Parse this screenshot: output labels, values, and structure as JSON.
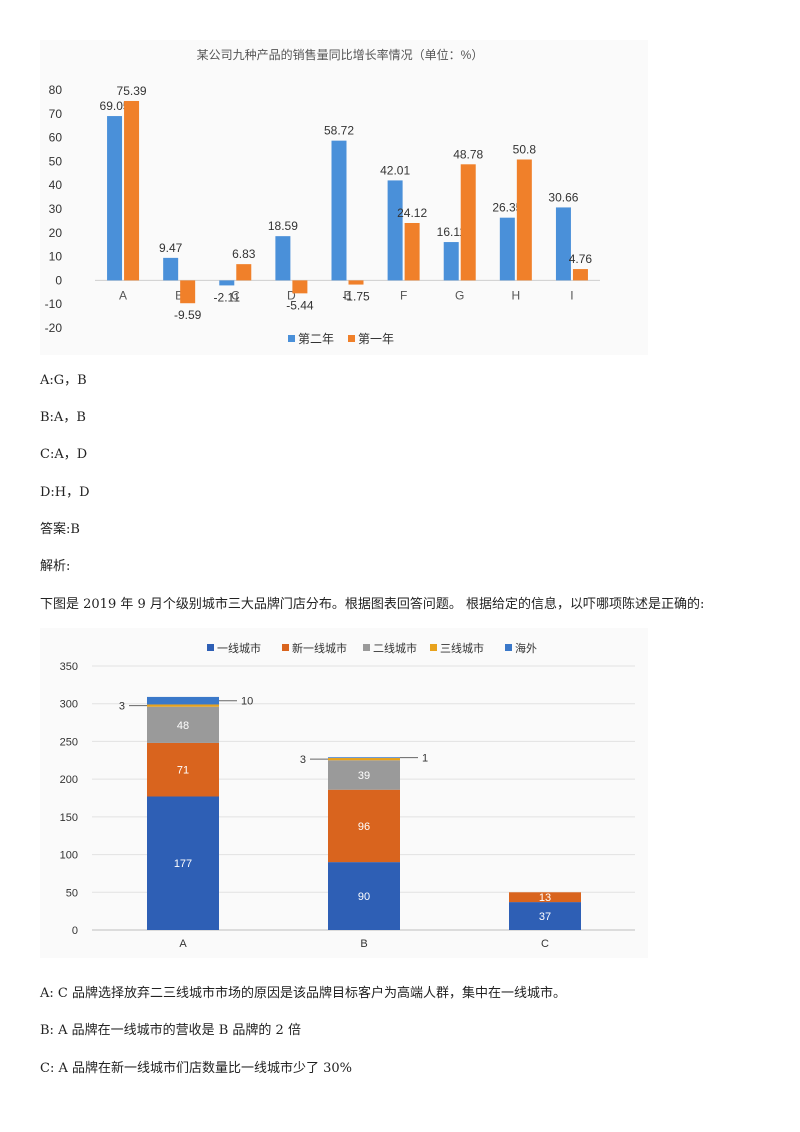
{
  "chart1": {
    "chart_data": {
      "type": "bar",
      "title": "某公司九种产品的销售量同比增长率情况（单位：%）",
      "categories": [
        "A",
        "B",
        "C",
        "D",
        "E",
        "F",
        "G",
        "H",
        "I"
      ],
      "series": [
        {
          "name": "第二年",
          "color": "#4a90d9",
          "values": [
            69.05,
            9.47,
            -2.11,
            18.59,
            58.72,
            42.01,
            16.11,
            26.35,
            30.66
          ]
        },
        {
          "name": "第一年",
          "color": "#f0802a",
          "values": [
            75.39,
            -9.59,
            6.83,
            -5.44,
            -1.75,
            24.12,
            48.78,
            50.8,
            4.76
          ]
        }
      ],
      "ylim": [
        -20,
        80
      ],
      "yticks": [
        80,
        70,
        60,
        50,
        40,
        30,
        20,
        10,
        0,
        -10,
        -20
      ],
      "legend": "bottom"
    }
  },
  "options1": {
    "a": "A:G，B",
    "b": "B:A，B",
    "c": "C:A，D",
    "d": "D:H，D"
  },
  "answer": "答案:B",
  "analysis_label": "解析:",
  "question2": "下图是 2019 年 9 月个级别城市三大品牌门店分布。根据图表回答问题。 根据给定的信息，以吓哪项陈述是正确的:",
  "chart2": {
    "chart_data": {
      "type": "bar",
      "stacked": true,
      "categories": [
        "A",
        "B",
        "C"
      ],
      "series": [
        {
          "name": "一线城市",
          "color": "#2e5fb5",
          "values": [
            177,
            90,
            37
          ]
        },
        {
          "name": "新一线城市",
          "color": "#d9641e",
          "values": [
            71,
            96,
            13
          ]
        },
        {
          "name": "二线城市",
          "color": "#9a9a9a",
          "values": [
            48,
            39,
            0
          ]
        },
        {
          "name": "三线城市",
          "color": "#e8a21c",
          "values": [
            3,
            3,
            0
          ]
        },
        {
          "name": "海外",
          "color": "#3a78c9",
          "values": [
            10,
            1,
            0
          ]
        }
      ],
      "ylim": [
        0,
        350
      ],
      "yticks": [
        350,
        300,
        250,
        200,
        150,
        100,
        50,
        0
      ],
      "legend": "top"
    }
  },
  "options2": {
    "a": "A: C 品牌选择放弃二三线城市市场的原因是该品牌目标客户为高端人群，集中在一线城市。",
    "b": "B: A 品牌在一线城市的营收是 B 品牌的 2 倍",
    "c": "C: A 品牌在新一线城市们店数量比一线城市少了 30%"
  }
}
